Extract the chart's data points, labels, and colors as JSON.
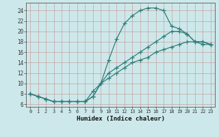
{
  "line1_x": [
    0,
    1,
    2,
    3,
    4,
    5,
    6,
    7,
    8,
    9,
    10,
    11,
    12,
    13,
    14,
    15,
    16,
    17,
    18,
    19,
    20,
    21,
    22,
    23
  ],
  "line1_y": [
    8,
    7.5,
    7,
    6.5,
    6.5,
    6.5,
    6.5,
    6.5,
    7.5,
    10,
    14.5,
    18.5,
    21.5,
    23,
    24,
    24.5,
    24.5,
    24,
    21,
    20.5,
    19.5,
    18,
    18,
    17.5
  ],
  "line2_x": [
    0,
    1,
    2,
    3,
    4,
    5,
    6,
    7,
    8,
    9,
    10,
    11,
    12,
    13,
    14,
    15,
    16,
    17,
    18,
    19,
    20,
    21,
    22,
    23
  ],
  "line2_y": [
    8,
    7.5,
    7,
    6.5,
    6.5,
    6.5,
    6.5,
    6.5,
    8.5,
    10,
    12,
    13,
    14,
    15,
    16,
    17,
    18,
    19,
    20,
    20,
    19.5,
    18,
    18,
    17.5
  ],
  "line3_x": [
    0,
    1,
    2,
    3,
    4,
    5,
    6,
    7,
    8,
    9,
    10,
    11,
    12,
    13,
    14,
    15,
    16,
    17,
    18,
    19,
    20,
    21,
    22,
    23
  ],
  "line3_y": [
    8,
    7.5,
    7,
    6.5,
    6.5,
    6.5,
    6.5,
    6.5,
    7.5,
    10,
    11,
    12,
    13,
    14,
    14.5,
    15,
    16,
    16.5,
    17,
    17.5,
    18,
    18,
    17.5,
    17.5
  ],
  "color": "#2e7d7a",
  "bg_color": "#cde8ea",
  "grid_color": "#b8d4d6",
  "xlabel": "Humidex (Indice chaleur)",
  "xlim": [
    -0.5,
    23.5
  ],
  "ylim": [
    5.5,
    25.5
  ],
  "yticks": [
    6,
    8,
    10,
    12,
    14,
    16,
    18,
    20,
    22,
    24
  ],
  "xticks": [
    0,
    1,
    2,
    3,
    4,
    5,
    6,
    7,
    8,
    9,
    10,
    11,
    12,
    13,
    14,
    15,
    16,
    17,
    18,
    19,
    20,
    21,
    22,
    23
  ]
}
